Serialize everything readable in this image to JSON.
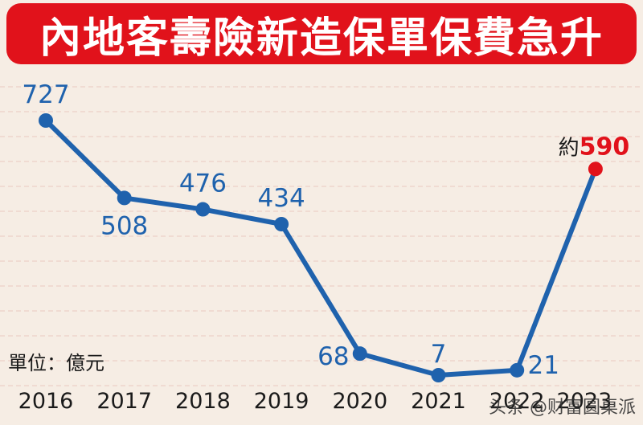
{
  "title": "內地客壽險新造保單保費急升",
  "unit_label": "單位：億元",
  "watermark": "头条 @财富圆桌派",
  "colors": {
    "banner": "#e1121b",
    "line": "#1f62ad",
    "label": "#1f62ad",
    "highlight": "#e1121b",
    "background": "#f6ede4",
    "grid": "#e9c9bf"
  },
  "chart_data": {
    "type": "line",
    "title": "內地客壽險新造保單保費急升",
    "xlabel": "",
    "ylabel": "單位：億元",
    "categories": [
      "2016",
      "2017",
      "2018",
      "2019",
      "2020",
      "2021",
      "2022",
      "2023"
    ],
    "series": [
      {
        "values": [
          727,
          508,
          476,
          434,
          68,
          7,
          21,
          590
        ],
        "labels": [
          "727",
          "508",
          "476",
          "434",
          "68",
          "7",
          "21",
          "590"
        ]
      }
    ],
    "highlight": {
      "index": 7,
      "prefix": "約"
    },
    "ylim": [
      0,
      800
    ],
    "grid": true,
    "legend": "none"
  }
}
